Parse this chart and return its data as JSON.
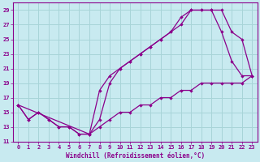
{
  "line1_x": [
    0,
    1,
    2,
    3,
    4,
    5,
    6,
    7,
    8,
    9,
    10,
    11,
    12,
    13,
    14,
    15,
    16,
    17,
    18,
    19,
    20,
    21,
    22,
    23
  ],
  "line1_y": [
    16,
    14,
    15,
    14,
    13,
    13,
    12,
    12,
    14,
    19,
    21,
    22,
    23,
    24,
    25,
    26,
    28,
    29,
    29,
    29,
    26,
    22,
    20,
    20
  ],
  "line2_x": [
    0,
    7,
    8,
    9,
    10,
    11,
    12,
    13,
    14,
    15,
    16,
    17,
    18,
    19,
    20,
    21,
    22,
    23
  ],
  "line2_y": [
    16,
    12,
    18,
    20,
    21,
    22,
    23,
    24,
    25,
    26,
    27,
    29,
    29,
    29,
    29,
    26,
    25,
    20
  ],
  "line3_x": [
    0,
    1,
    2,
    3,
    4,
    5,
    6,
    7,
    8,
    9,
    10,
    11,
    12,
    13,
    14,
    15,
    16,
    17,
    18,
    19,
    20,
    21,
    22,
    23
  ],
  "line3_y": [
    16,
    14,
    15,
    14,
    13,
    13,
    12,
    12,
    13,
    14,
    15,
    15,
    16,
    16,
    17,
    17,
    18,
    18,
    19,
    19,
    19,
    19,
    19,
    20
  ],
  "line_color": "#8b008b",
  "bg_color": "#c8eaf0",
  "grid_color": "#a8d4d8",
  "xlabel": "Windchill (Refroidissement éolien,°C)",
  "xlim_min": -0.5,
  "xlim_max": 23.5,
  "ylim_min": 11,
  "ylim_max": 30,
  "yticks": [
    11,
    13,
    15,
    17,
    19,
    21,
    23,
    25,
    27,
    29
  ],
  "xticks": [
    0,
    1,
    2,
    3,
    4,
    5,
    6,
    7,
    8,
    9,
    10,
    11,
    12,
    13,
    14,
    15,
    16,
    17,
    18,
    19,
    20,
    21,
    22,
    23
  ]
}
